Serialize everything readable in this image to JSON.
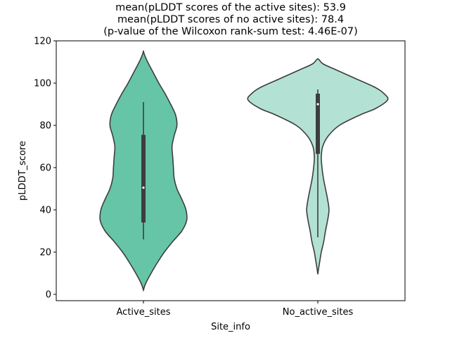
{
  "chart_data": {
    "type": "violin",
    "title_lines": [
      "mean(pLDDT scores of the active sites): 53.9",
      "mean(pLDDT scores of no active sites): 78.4",
      "(p-value of the Wilcoxon rank-sum test: 4.46E-07)"
    ],
    "xlabel": "Site_info",
    "ylabel": "pLDDT_score",
    "ylim": [
      -3,
      120
    ],
    "yticks": [
      0,
      20,
      40,
      60,
      80,
      100,
      120
    ],
    "grid": false,
    "categories": [
      "Active_sites",
      "No_active_sites"
    ],
    "colors": {
      "Active_sites": "#66c5a7",
      "No_active_sites": "#b3e2d4",
      "outline": "#3d3d3d"
    },
    "violins": [
      {
        "category": "Active_sites",
        "box": {
          "q1": 34,
          "median": 50.5,
          "q3": 75.5,
          "whisker_low": 26,
          "whisker_high": 91
        },
        "density_profile": [
          [
            2,
            0.0
          ],
          [
            5,
            0.03
          ],
          [
            10,
            0.11
          ],
          [
            15,
            0.2
          ],
          [
            20,
            0.3
          ],
          [
            25,
            0.42
          ],
          [
            30,
            0.55
          ],
          [
            35,
            0.62
          ],
          [
            40,
            0.61
          ],
          [
            45,
            0.55
          ],
          [
            50,
            0.48
          ],
          [
            55,
            0.44
          ],
          [
            60,
            0.43
          ],
          [
            65,
            0.42
          ],
          [
            70,
            0.41
          ],
          [
            75,
            0.44
          ],
          [
            80,
            0.48
          ],
          [
            85,
            0.46
          ],
          [
            90,
            0.39
          ],
          [
            95,
            0.31
          ],
          [
            100,
            0.22
          ],
          [
            105,
            0.14
          ],
          [
            110,
            0.06
          ],
          [
            113,
            0.02
          ],
          [
            115,
            0.0
          ]
        ]
      },
      {
        "category": "No_active_sites",
        "box": {
          "q1": 66.5,
          "median": 90,
          "q3": 95,
          "whisker_low": 27,
          "whisker_high": 97
        },
        "density_profile": [
          [
            9.5,
            0.0
          ],
          [
            12,
            0.01
          ],
          [
            15,
            0.025
          ],
          [
            20,
            0.05
          ],
          [
            25,
            0.085
          ],
          [
            30,
            0.11
          ],
          [
            35,
            0.14
          ],
          [
            40,
            0.16
          ],
          [
            45,
            0.14
          ],
          [
            50,
            0.11
          ],
          [
            55,
            0.08
          ],
          [
            60,
            0.06
          ],
          [
            65,
            0.05
          ],
          [
            70,
            0.07
          ],
          [
            75,
            0.15
          ],
          [
            80,
            0.31
          ],
          [
            85,
            0.61
          ],
          [
            88,
            0.83
          ],
          [
            92,
            1.0
          ],
          [
            95,
            0.95
          ],
          [
            98,
            0.82
          ],
          [
            102,
            0.55
          ],
          [
            106,
            0.28
          ],
          [
            109,
            0.08
          ],
          [
            111,
            0.02
          ],
          [
            111.5,
            0.0
          ]
        ]
      }
    ]
  }
}
